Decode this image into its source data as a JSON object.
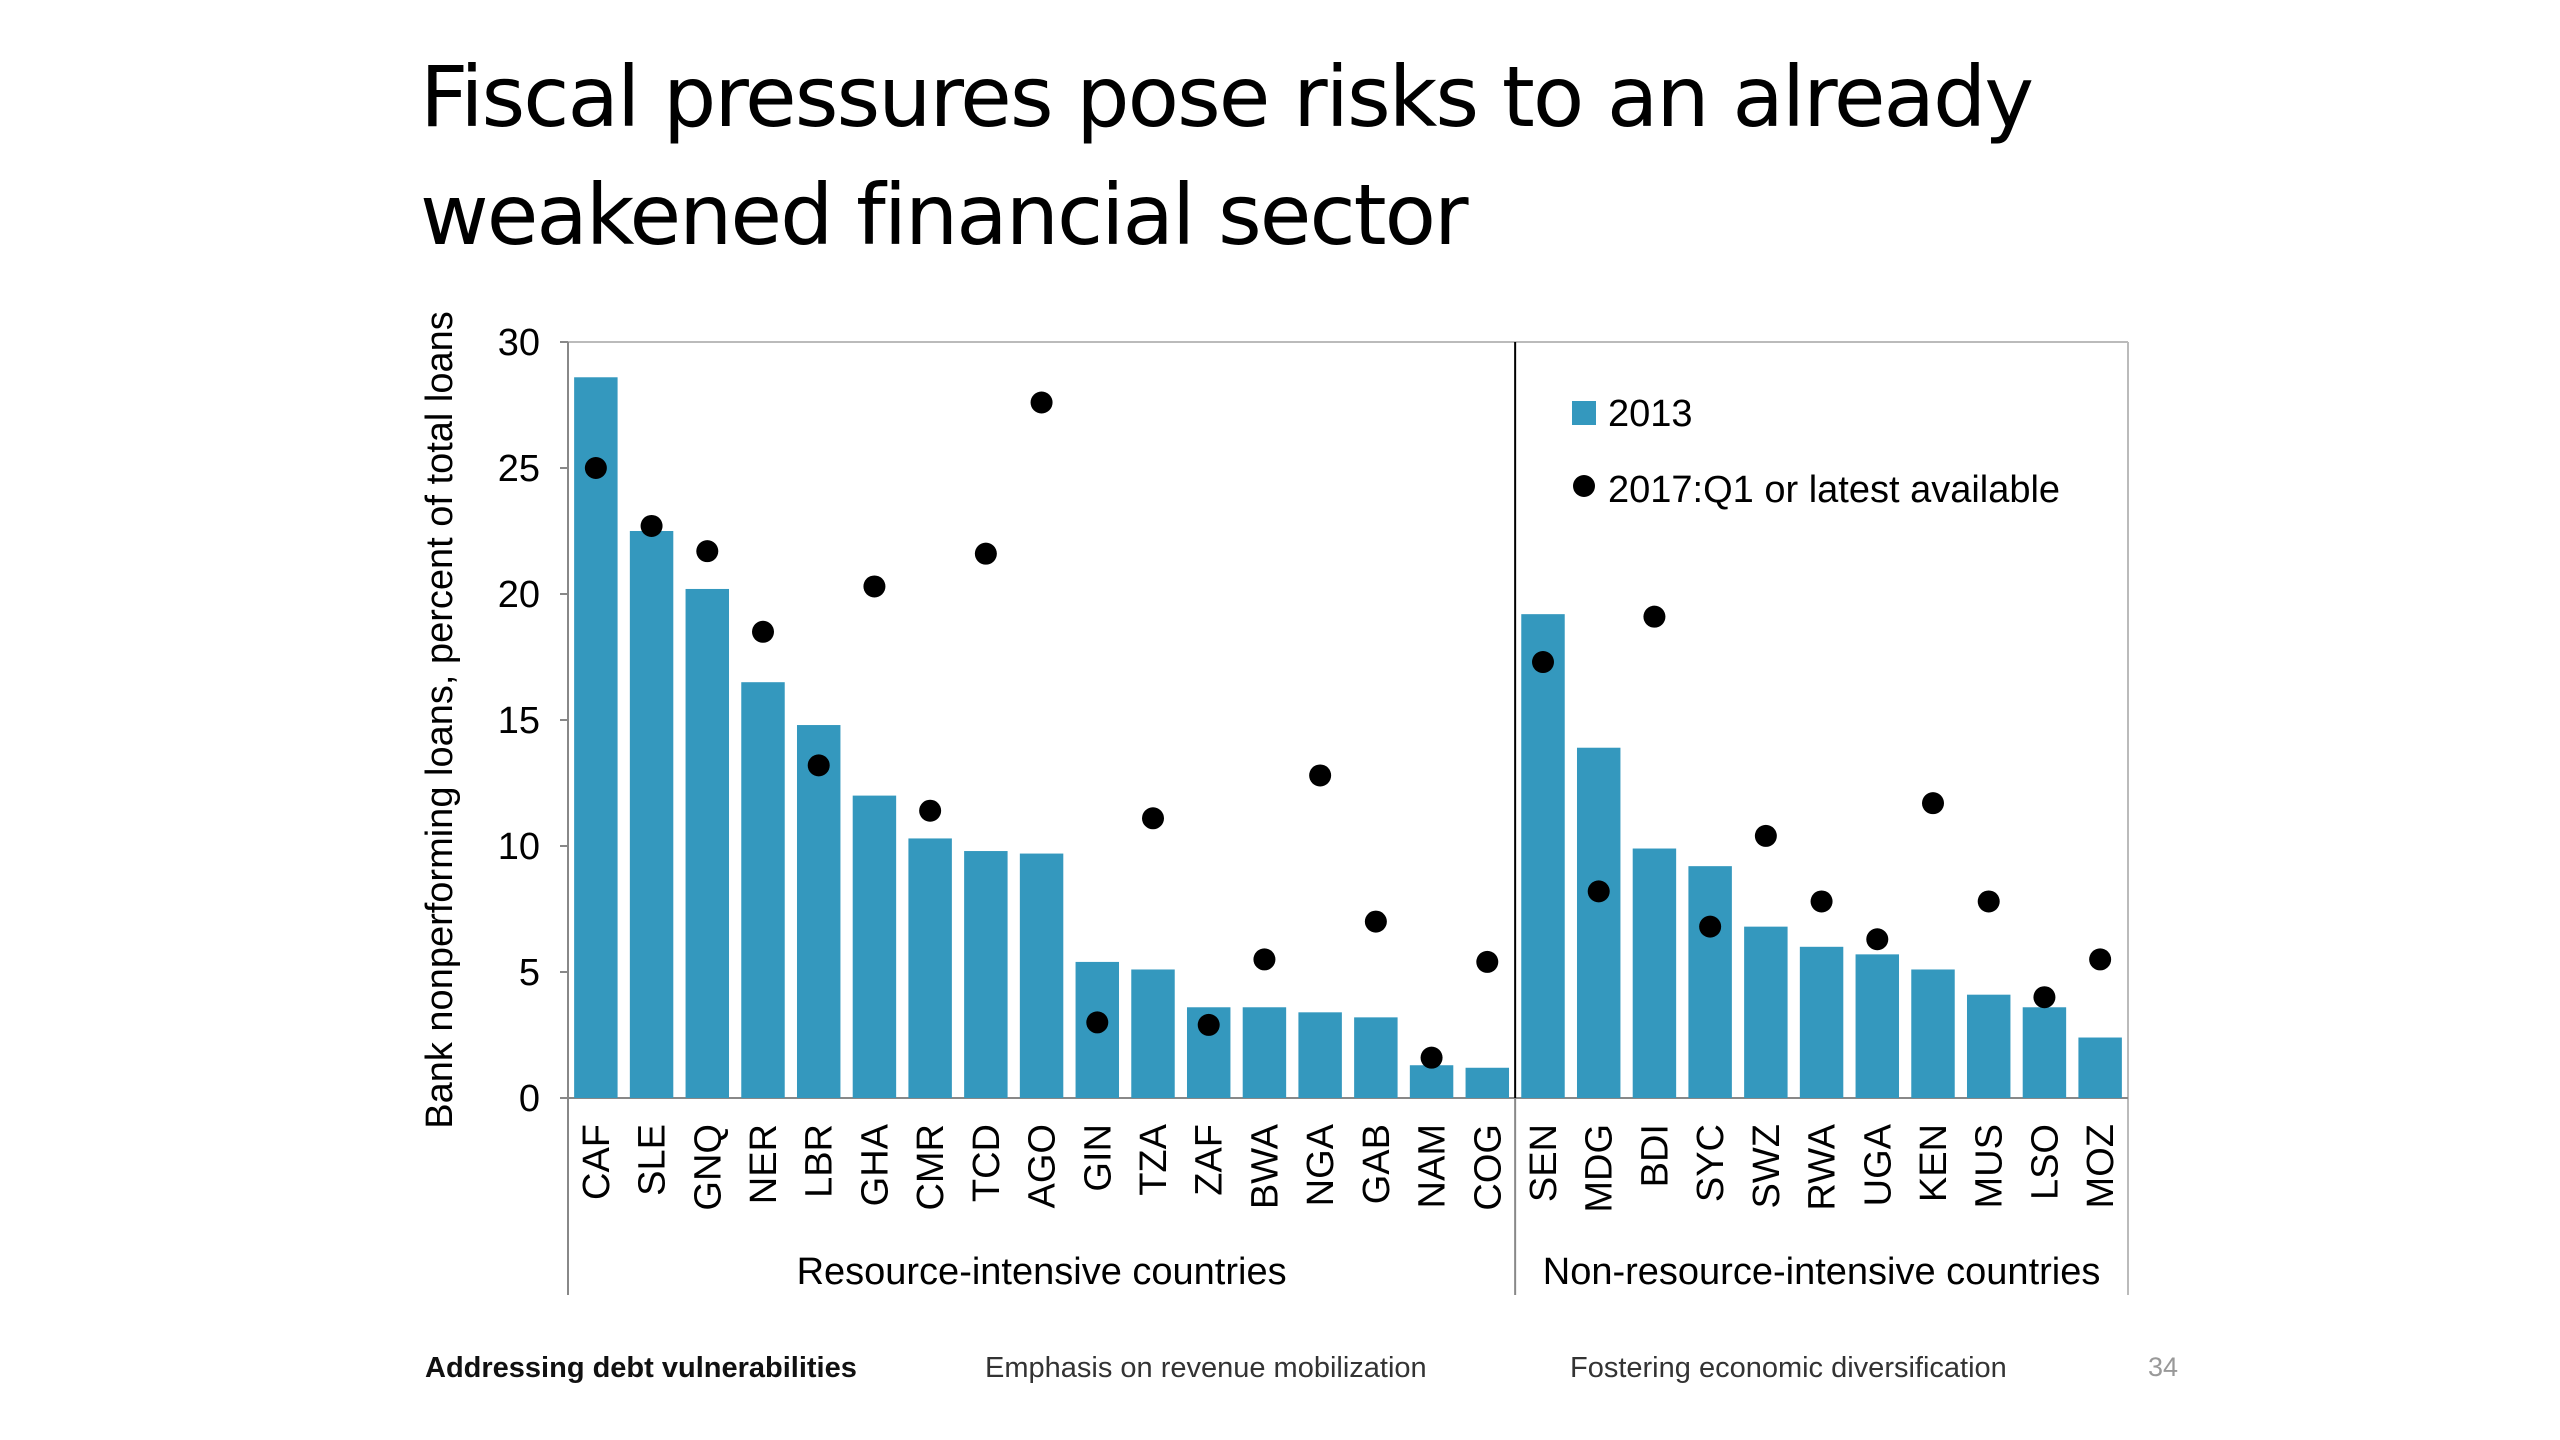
{
  "slide": {
    "title_lines": [
      "Fiscal pressures pose risks to an already",
      "weakened financial sector"
    ],
    "page_number": "34"
  },
  "footer": {
    "items": [
      {
        "label": "Addressing debt vulnerabilities",
        "active": true
      },
      {
        "label": "Emphasis on revenue mobilization",
        "active": false
      },
      {
        "label": "Fostering economic diversification",
        "active": false
      }
    ]
  },
  "chart_data": {
    "type": "bar",
    "title": "",
    "ylabel": "Bank nonperforming loans, percent of total loans",
    "xlabel": "",
    "ylim": [
      0,
      30
    ],
    "yticks": [
      0,
      5,
      10,
      15,
      20,
      25,
      30
    ],
    "grid": false,
    "legend_position": "top-right",
    "colors": {
      "bar": "#3498BE",
      "dot": "#000000"
    },
    "legend": [
      "2013",
      "2017:Q1 or latest available"
    ],
    "groups": [
      {
        "label": "Resource-intensive countries",
        "count": 17
      },
      {
        "label": "Non-resource-intensive countries",
        "count": 11
      }
    ],
    "categories": [
      "CAF",
      "SLE",
      "GNQ",
      "NER",
      "LBR",
      "GHA",
      "CMR",
      "TCD",
      "AGO",
      "GIN",
      "TZA",
      "ZAF",
      "BWA",
      "NGA",
      "GAB",
      "NAM",
      "COG",
      "SEN",
      "MDG",
      "BDI",
      "SYC",
      "SWZ",
      "RWA",
      "UGA",
      "KEN",
      "MUS",
      "LSO",
      "MOZ"
    ],
    "series": [
      {
        "name": "2013",
        "type": "bar",
        "values": [
          28.6,
          22.5,
          20.2,
          16.5,
          14.8,
          12.0,
          10.3,
          9.8,
          9.7,
          5.4,
          5.1,
          3.6,
          3.6,
          3.4,
          3.2,
          1.3,
          1.2,
          19.2,
          13.9,
          9.9,
          9.2,
          6.8,
          6.0,
          5.7,
          5.1,
          4.1,
          3.6,
          2.4
        ]
      },
      {
        "name": "2017:Q1 or latest available",
        "type": "scatter",
        "values": [
          25.0,
          22.7,
          21.7,
          18.5,
          13.2,
          20.3,
          11.4,
          21.6,
          27.6,
          3.0,
          11.1,
          2.9,
          5.5,
          12.8,
          7.0,
          1.6,
          5.4,
          17.3,
          8.2,
          19.1,
          6.8,
          10.4,
          7.8,
          6.3,
          11.7,
          7.8,
          4.0,
          5.5
        ]
      }
    ]
  }
}
